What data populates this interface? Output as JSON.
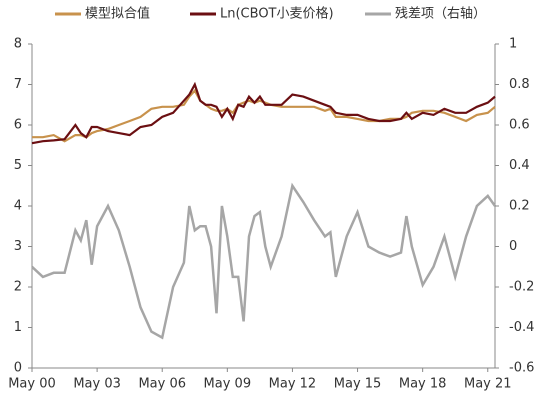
{
  "chart_data": {
    "type": "line",
    "x": [
      "2000-05",
      "2000-11",
      "2001-05",
      "2001-11",
      "2002-05",
      "2002-08",
      "2002-11",
      "2003-02",
      "2003-05",
      "2003-11",
      "2004-05",
      "2004-11",
      "2005-05",
      "2005-11",
      "2006-05",
      "2006-11",
      "2007-05",
      "2007-08",
      "2007-11",
      "2008-02",
      "2008-05",
      "2008-08",
      "2008-11",
      "2009-02",
      "2009-05",
      "2009-08",
      "2009-11",
      "2010-02",
      "2010-05",
      "2010-08",
      "2010-11",
      "2011-02",
      "2011-05",
      "2011-11",
      "2012-05",
      "2012-11",
      "2013-05",
      "2013-11",
      "2014-02",
      "2014-05",
      "2014-11",
      "2015-05",
      "2015-11",
      "2016-05",
      "2016-11",
      "2017-05",
      "2017-08",
      "2017-11",
      "2018-05",
      "2018-11",
      "2019-05",
      "2019-11",
      "2020-05",
      "2020-11",
      "2021-05",
      "2021-09"
    ],
    "xlim": [
      "2000-05",
      "2021-09"
    ],
    "xticks": [
      {
        "value": "2000-05",
        "label": "May 00"
      },
      {
        "value": "2003-05",
        "label": "May 03"
      },
      {
        "value": "2006-05",
        "label": "May 06"
      },
      {
        "value": "2009-05",
        "label": "May 09"
      },
      {
        "value": "2012-05",
        "label": "May 12"
      },
      {
        "value": "2015-05",
        "label": "May 15"
      },
      {
        "value": "2018-05",
        "label": "May 18"
      },
      {
        "value": "2021-05",
        "label": "May 21"
      }
    ],
    "ylim": [
      0,
      8
    ],
    "yticks": [
      0,
      1,
      2,
      3,
      4,
      5,
      6,
      7,
      8
    ],
    "y2lim": [
      -0.6,
      1
    ],
    "y2ticks": [
      -0.6,
      -0.4,
      -0.2,
      0,
      0.2,
      0.4,
      0.6,
      0.8,
      1
    ],
    "series": [
      {
        "name": "模型拟合值",
        "color": "#c8924c",
        "values": [
          5.7,
          5.7,
          5.75,
          5.6,
          5.75,
          5.75,
          5.7,
          5.8,
          5.85,
          5.9,
          6.0,
          6.1,
          6.2,
          6.4,
          6.45,
          6.45,
          6.5,
          6.7,
          6.85,
          6.6,
          6.5,
          6.4,
          6.35,
          6.35,
          6.4,
          6.3,
          6.5,
          6.55,
          6.6,
          6.55,
          6.6,
          6.55,
          6.5,
          6.45,
          6.45,
          6.45,
          6.45,
          6.35,
          6.4,
          6.2,
          6.2,
          6.15,
          6.1,
          6.1,
          6.15,
          6.15,
          6.2,
          6.3,
          6.35,
          6.35,
          6.3,
          6.2,
          6.1,
          6.25,
          6.3,
          6.45
        ]
      },
      {
        "name": "Ln(CBOT小麦价格)",
        "color": "#6b0f12",
        "values": [
          5.55,
          5.6,
          5.62,
          5.65,
          6.0,
          5.8,
          5.7,
          5.95,
          5.95,
          5.85,
          5.8,
          5.75,
          5.95,
          6.0,
          6.2,
          6.3,
          6.6,
          6.75,
          7.0,
          6.6,
          6.5,
          6.5,
          6.45,
          6.2,
          6.4,
          6.15,
          6.5,
          6.45,
          6.7,
          6.55,
          6.7,
          6.5,
          6.5,
          6.5,
          6.75,
          6.7,
          6.6,
          6.5,
          6.45,
          6.3,
          6.25,
          6.25,
          6.15,
          6.1,
          6.1,
          6.15,
          6.3,
          6.15,
          6.3,
          6.25,
          6.4,
          6.3,
          6.3,
          6.45,
          6.55,
          6.7
        ]
      },
      {
        "name": "残差项（右轴）",
        "color": "#a6a6a6",
        "axis": "y2",
        "values": [
          -0.1,
          -0.15,
          -0.13,
          -0.13,
          0.08,
          0.03,
          0.13,
          -0.09,
          0.1,
          0.2,
          0.08,
          -0.1,
          -0.3,
          -0.42,
          -0.45,
          -0.2,
          -0.08,
          0.2,
          0.08,
          0.1,
          0.1,
          0.0,
          -0.33,
          0.2,
          0.05,
          -0.15,
          -0.15,
          -0.37,
          0.05,
          0.15,
          0.17,
          0.0,
          -0.1,
          0.05,
          0.3,
          0.22,
          0.13,
          0.05,
          0.07,
          -0.15,
          0.05,
          0.17,
          0.0,
          -0.03,
          -0.05,
          -0.03,
          0.15,
          0.0,
          -0.19,
          -0.1,
          0.05,
          -0.15,
          0.05,
          0.2,
          0.25,
          0.2
        ]
      }
    ]
  }
}
